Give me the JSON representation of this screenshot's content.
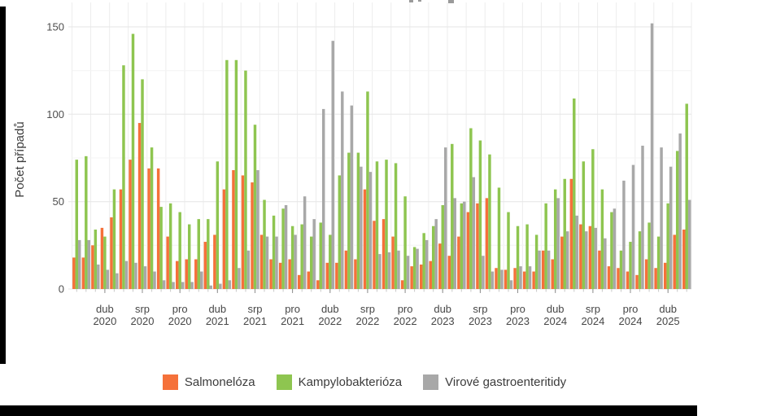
{
  "page": {
    "background": "#ffffff"
  },
  "chart_data": {
    "type": "bar",
    "title": "",
    "ylabel": "Počet případů",
    "yticks": [
      "0",
      "50",
      "100",
      "150"
    ],
    "ylim": [
      0,
      163
    ],
    "months_total": 66,
    "grid": true,
    "legend_position": "bottom",
    "x_axis": {
      "ticks": [
        {
          "index": 3,
          "month": "dub",
          "year": "2020"
        },
        {
          "index": 7,
          "month": "srp",
          "year": "2020"
        },
        {
          "index": 11,
          "month": "pro",
          "year": "2020"
        },
        {
          "index": 15,
          "month": "dub",
          "year": "2021"
        },
        {
          "index": 19,
          "month": "srp",
          "year": "2021"
        },
        {
          "index": 23,
          "month": "pro",
          "year": "2021"
        },
        {
          "index": 27,
          "month": "dub",
          "year": "2022"
        },
        {
          "index": 31,
          "month": "srp",
          "year": "2022"
        },
        {
          "index": 35,
          "month": "pro",
          "year": "2022"
        },
        {
          "index": 39,
          "month": "dub",
          "year": "2023"
        },
        {
          "index": 43,
          "month": "srp",
          "year": "2023"
        },
        {
          "index": 47,
          "month": "pro",
          "year": "2023"
        },
        {
          "index": 51,
          "month": "dub",
          "year": "2024"
        },
        {
          "index": 55,
          "month": "srp",
          "year": "2024"
        },
        {
          "index": 59,
          "month": "pro",
          "year": "2024"
        },
        {
          "index": 63,
          "month": "dub",
          "year": "2025"
        }
      ]
    },
    "series": [
      {
        "name": "Salmonelóza",
        "color": "#F5713A",
        "values": [
          18,
          18,
          25,
          35,
          41,
          57,
          74,
          95,
          69,
          69,
          30,
          16,
          17,
          17,
          27,
          31,
          57,
          68,
          65,
          61,
          31,
          17,
          15,
          17,
          8,
          10,
          5,
          15,
          15,
          22,
          17,
          57,
          39,
          40,
          30,
          5,
          13,
          14,
          16,
          26,
          19,
          30,
          44,
          49,
          52,
          12,
          11,
          12,
          10,
          10,
          22,
          17,
          30,
          63,
          37,
          36,
          22,
          13,
          12,
          10,
          8,
          17,
          12,
          15,
          31,
          34
        ]
      },
      {
        "name": "Kampylobakterióza",
        "color": "#8EC550",
        "values": [
          74,
          76,
          34,
          30,
          57,
          128,
          146,
          120,
          81,
          47,
          49,
          44,
          37,
          40,
          40,
          73,
          131,
          131,
          125,
          94,
          51,
          42,
          46,
          36,
          37,
          30,
          38,
          31,
          65,
          78,
          78,
          113,
          73,
          74,
          72,
          53,
          24,
          32,
          36,
          48,
          83,
          49,
          92,
          85,
          77,
          58,
          44,
          36,
          37,
          31,
          49,
          57,
          63,
          109,
          73,
          80,
          57,
          44,
          22,
          27,
          33,
          38,
          30,
          49,
          79,
          106
        ]
      },
      {
        "name": "Virové gastroenteritidy",
        "color": "#A8A8A8",
        "values": [
          28,
          28,
          14,
          11,
          9,
          16,
          15,
          13,
          10,
          5,
          4,
          4,
          4,
          10,
          2,
          3,
          5,
          12,
          22,
          68,
          30,
          30,
          48,
          31,
          53,
          40,
          103,
          142,
          113,
          105,
          70,
          67,
          20,
          21,
          22,
          19,
          23,
          28,
          40,
          81,
          52,
          50,
          64,
          19,
          10,
          11,
          5,
          13,
          13,
          22,
          22,
          52,
          33,
          42,
          33,
          35,
          29,
          46,
          62,
          71,
          82,
          152,
          81,
          70,
          89,
          51
        ]
      }
    ]
  }
}
